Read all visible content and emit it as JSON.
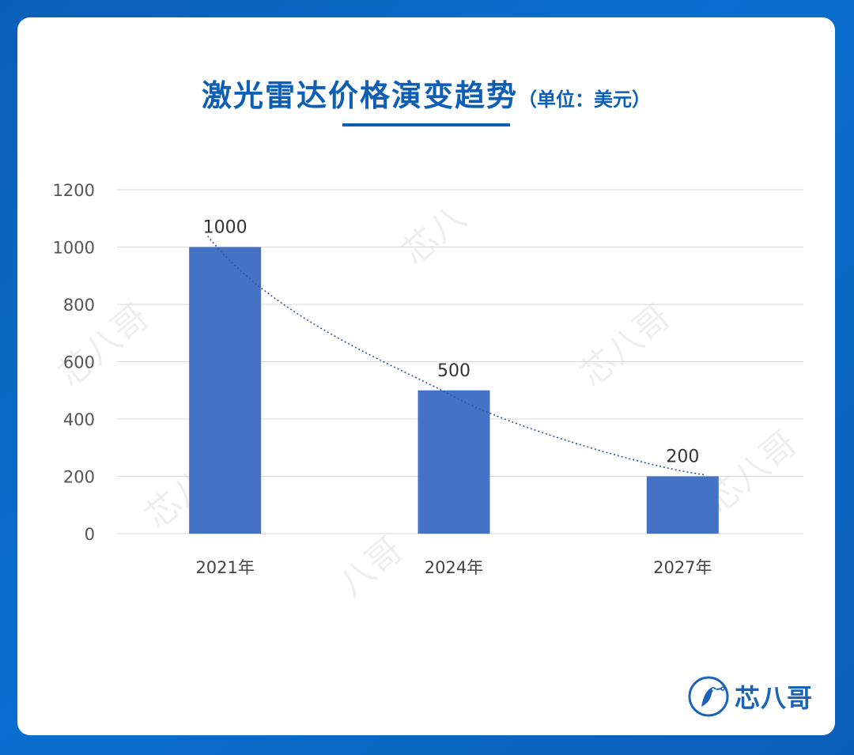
{
  "header": {
    "title": "激光雷达价格演变趋势",
    "subtitle": "（单位：美元）"
  },
  "brand": {
    "name": "芯八哥"
  },
  "colors": {
    "bar": "#4472c4",
    "trendline": "#2f55a4",
    "title": "#0d5fb5",
    "grid": "#d9d9d9"
  },
  "chart_data": {
    "type": "bar",
    "title": "激光雷达价格演变趋势",
    "subtitle": "（单位：美元）",
    "categories": [
      "2021年",
      "2024年",
      "2027年"
    ],
    "values": [
      1000,
      500,
      200
    ],
    "data_labels": [
      "1000",
      "500",
      "200"
    ],
    "ylim": [
      0,
      1200
    ],
    "yticks": [
      0,
      200,
      400,
      600,
      800,
      1000,
      1200
    ],
    "grid": true,
    "trendline": "dotted",
    "xlabel": "",
    "ylabel": ""
  }
}
